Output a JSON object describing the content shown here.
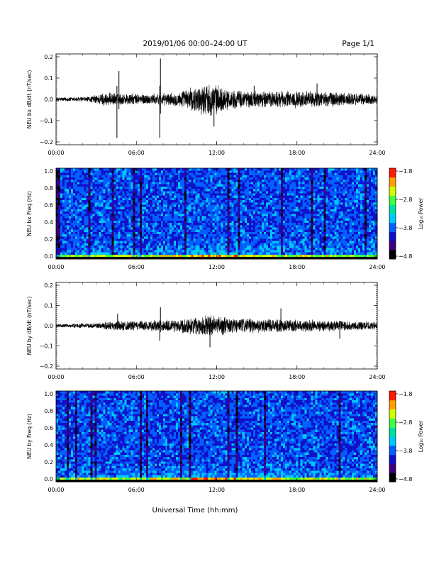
{
  "header": {
    "title": "2019/01/06  00:00–24:00 UT",
    "page": "Page 1/1"
  },
  "xlabel": "Universal Time (hh:mm)",
  "colors": {
    "trace": "#000000",
    "colormap": [
      "#000000",
      "#3a007a",
      "#1010c8",
      "#0060ff",
      "#00c8ff",
      "#00e0a0",
      "#40ff40",
      "#d0ff00",
      "#ffa000",
      "#ff1a00"
    ]
  },
  "chart_data": [
    {
      "type": "line",
      "ylabel": "NEU bx dB/dt (nT/sec)",
      "xlim": [
        0,
        24
      ],
      "ylim": [
        -0.2,
        0.2
      ],
      "yticks": [
        "0.2",
        "0.1",
        "0.0",
        "−0.1",
        "−0.2"
      ],
      "xticks": [
        "00:00",
        "06:00",
        "12:00",
        "18:00",
        "24:00"
      ],
      "base_amplitude": [
        [
          0,
          0.006
        ],
        [
          2.5,
          0.008
        ],
        [
          3.5,
          0.02
        ],
        [
          5,
          0.018
        ],
        [
          7,
          0.016
        ],
        [
          9,
          0.02
        ],
        [
          10.5,
          0.04
        ],
        [
          11.5,
          0.05
        ],
        [
          13,
          0.028
        ],
        [
          15,
          0.025
        ],
        [
          18,
          0.025
        ],
        [
          21,
          0.022
        ],
        [
          24,
          0.015
        ]
      ],
      "spikes": [
        [
          4.55,
          -0.17
        ],
        [
          4.7,
          0.125
        ],
        [
          7.75,
          -0.17
        ],
        [
          7.8,
          0.18
        ],
        [
          11.8,
          -0.12
        ],
        [
          14.8,
          0.06
        ],
        [
          19.5,
          0.07
        ]
      ]
    },
    {
      "type": "heatmap",
      "ylabel": "NEU bx Freq (Hz)",
      "xlim": [
        0,
        24
      ],
      "ylim": [
        0,
        1.0
      ],
      "yticks": [
        "1.0",
        "0.8",
        "0.6",
        "0.4",
        "0.2",
        "0.0"
      ],
      "xticks": [
        "00:00",
        "06:00",
        "12:00",
        "18:00",
        "24:00"
      ],
      "colorbar": {
        "label": "Log₁₀ Power",
        "range": [
          -4.8,
          -1.8
        ],
        "ticks": [
          "−1.8",
          "−2.8",
          "−3.8",
          "−4.8"
        ]
      }
    },
    {
      "type": "line",
      "ylabel": "NEU by dB/dt (nT/sec)",
      "xlim": [
        0,
        24
      ],
      "ylim": [
        -0.2,
        0.2
      ],
      "yticks": [
        "0.2",
        "0.1",
        "0.0",
        "−0.1",
        "−0.2"
      ],
      "xticks": [
        "00:00",
        "06:00",
        "12:00",
        "18:00",
        "24:00"
      ],
      "base_amplitude": [
        [
          0,
          0.005
        ],
        [
          3,
          0.008
        ],
        [
          4,
          0.015
        ],
        [
          6,
          0.015
        ],
        [
          8,
          0.018
        ],
        [
          10,
          0.025
        ],
        [
          11.5,
          0.035
        ],
        [
          13,
          0.025
        ],
        [
          16,
          0.02
        ],
        [
          20,
          0.018
        ],
        [
          24,
          0.012
        ]
      ],
      "spikes": [
        [
          4.6,
          0.055
        ],
        [
          7.75,
          -0.07
        ],
        [
          7.8,
          0.085
        ],
        [
          11.5,
          -0.1
        ],
        [
          16.8,
          0.08
        ],
        [
          21.2,
          -0.06
        ]
      ]
    },
    {
      "type": "heatmap",
      "ylabel": "NEU by Freq (Hz)",
      "xlim": [
        0,
        24
      ],
      "ylim": [
        0,
        1.0
      ],
      "yticks": [
        "1.0",
        "0.8",
        "0.6",
        "0.4",
        "0.2",
        "0.0"
      ],
      "xticks": [
        "00:00",
        "06:00",
        "12:00",
        "18:00",
        "24:00"
      ],
      "colorbar": {
        "label": "Log₁₀ Power",
        "range": [
          -4.8,
          -1.8
        ],
        "ticks": [
          "−1.8",
          "−2.8",
          "−3.8",
          "−4.8"
        ]
      }
    }
  ]
}
